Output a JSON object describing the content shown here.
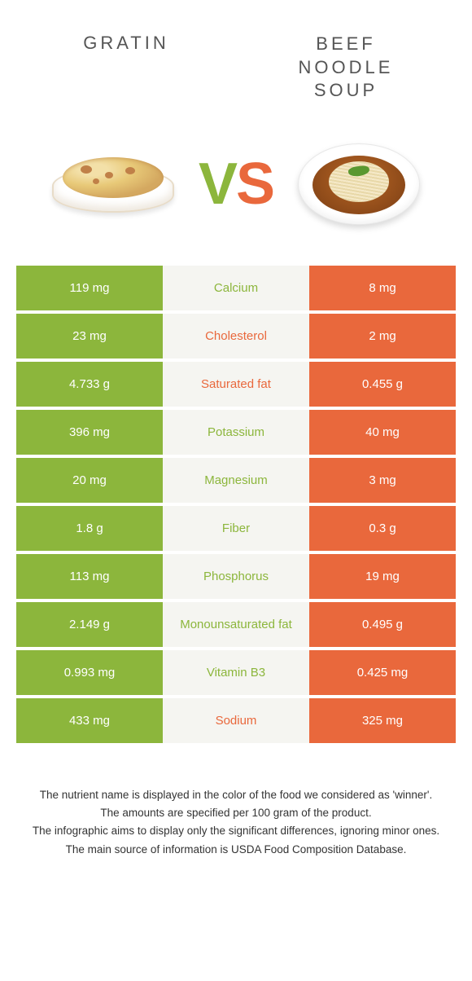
{
  "titles": {
    "left": "Gratin",
    "right": "Beef\nnoodle\nsoup"
  },
  "vs": {
    "v": "V",
    "s": "S"
  },
  "colors": {
    "green": "#8cb63c",
    "orange": "#e9683c",
    "mid_bg": "#f5f5f1",
    "page_bg": "#ffffff"
  },
  "food_left": {
    "name": "gratin"
  },
  "food_right": {
    "name": "beef-noodle-soup"
  },
  "rows": [
    {
      "left": "119 mg",
      "label": "Calcium",
      "right": "8 mg",
      "winner": "green"
    },
    {
      "left": "23 mg",
      "label": "Cholesterol",
      "right": "2 mg",
      "winner": "orange"
    },
    {
      "left": "4.733 g",
      "label": "Saturated fat",
      "right": "0.455 g",
      "winner": "orange"
    },
    {
      "left": "396 mg",
      "label": "Potassium",
      "right": "40 mg",
      "winner": "green"
    },
    {
      "left": "20 mg",
      "label": "Magnesium",
      "right": "3 mg",
      "winner": "green"
    },
    {
      "left": "1.8 g",
      "label": "Fiber",
      "right": "0.3 g",
      "winner": "green"
    },
    {
      "left": "113 mg",
      "label": "Phosphorus",
      "right": "19 mg",
      "winner": "green"
    },
    {
      "left": "2.149 g",
      "label": "Monounsaturated fat",
      "right": "0.495 g",
      "winner": "green"
    },
    {
      "left": "0.993 mg",
      "label": "Vitamin B3",
      "right": "0.425 mg",
      "winner": "green"
    },
    {
      "left": "433 mg",
      "label": "Sodium",
      "right": "325 mg",
      "winner": "orange"
    }
  ],
  "footer": [
    "The nutrient name is displayed in the color of the food we considered as 'winner'.",
    "The amounts are specified per 100 gram of the product.",
    "The infographic aims to display only the significant differences, ignoring minor ones.",
    "The main source of information is USDA Food Composition Database."
  ]
}
